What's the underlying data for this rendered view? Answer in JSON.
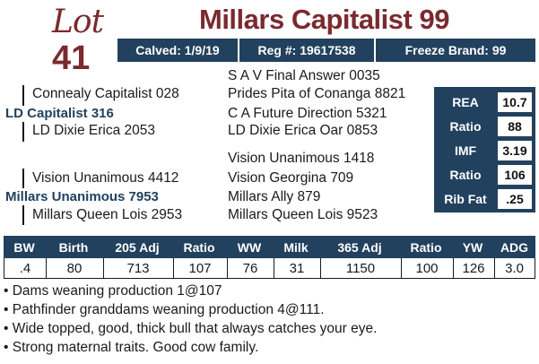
{
  "lot": {
    "word": "Lot",
    "number": "41"
  },
  "title": "Millars Capitalist 99",
  "info_bar": {
    "calved": "Calved: 1/9/19",
    "reg": "Reg #: 19617538",
    "freeze_brand": "Freeze Brand: 99"
  },
  "pedigree": {
    "sss": "S A V Final Answer 0035",
    "ssd": "Prides Pita of Conanga 8821",
    "ss": "Connealy Capitalist 028",
    "sds": "C A Future Direction 5321",
    "sire": "LD Capitalist 316",
    "sd": "LD Dixie Erica 2053",
    "sdd": "LD Dixie Erica Oar 0853",
    "dss": "Vision Unanimous 1418",
    "ds": "Vision Unanimous 4412",
    "dsd": "Vision Georgina 709",
    "dam": "Millars Unanimous 7953",
    "dds": "Millars Ally 879",
    "dd": "Millars Queen Lois 2953",
    "ddd": "Millars Queen Lois 9523"
  },
  "epd_side": [
    {
      "label": "REA",
      "value": "10.7"
    },
    {
      "label": "Ratio",
      "value": "88"
    },
    {
      "label": "IMF",
      "value": "3.19"
    },
    {
      "label": "Ratio",
      "value": "106"
    },
    {
      "label": "Rib Fat",
      "value": ".25"
    }
  ],
  "performance": {
    "headers": [
      "BW",
      "Birth",
      "205 Adj",
      "Ratio",
      "WW",
      "Milk",
      "365 Adj",
      "Ratio",
      "YW",
      "ADG"
    ],
    "values": [
      ".4",
      "80",
      "713",
      "107",
      "76",
      "31",
      "1150",
      "100",
      "126",
      "3.0"
    ]
  },
  "notes": [
    "Dams weaning production 1@107",
    "Pathfinder granddams weaning production 4@111.",
    "Wide topped, good, thick bull that always catches your eye.",
    "Strong maternal traits. Good cow family."
  ]
}
